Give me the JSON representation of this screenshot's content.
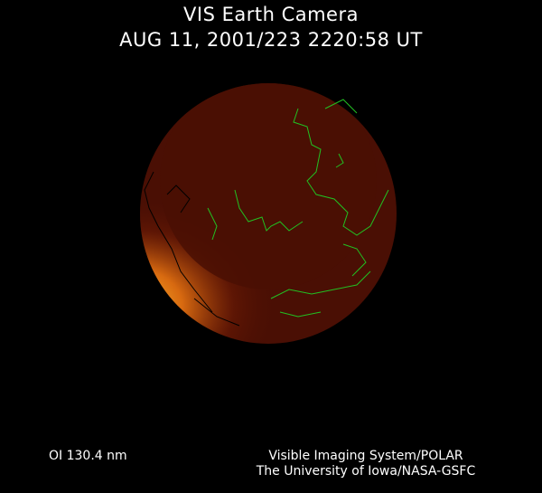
{
  "header": {
    "title": "VIS Earth Camera",
    "timestamp": "AUG 11, 2001/223 2220:58 UT"
  },
  "footer": {
    "wavelength": "OI  130.4 nm",
    "instrument": "Visible Imaging System/POLAR",
    "institution": "The University of Iowa/NASA-GSFC"
  },
  "colors": {
    "background": "#000000",
    "earth_disk": "#4a0f04",
    "aurora": "#f0a020",
    "coastlines": "#22c022",
    "text": "#ffffff"
  }
}
